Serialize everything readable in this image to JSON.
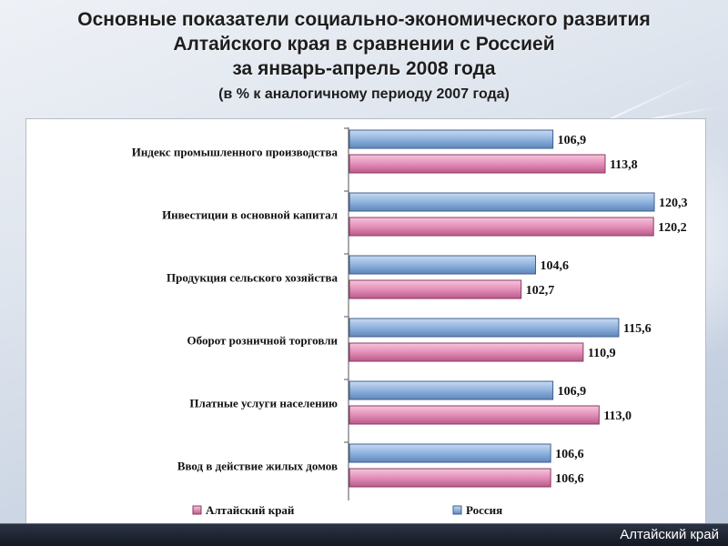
{
  "header": {
    "title_line1": "Основные показатели социально-экономического развития",
    "title_line2": "Алтайского края в сравнении с Россией",
    "title_line3": "за январь-апрель 2008 года",
    "subtitle": "(в % к аналогичному периоду 2007  года)"
  },
  "footer": {
    "label": "Алтайский край"
  },
  "chart_data": {
    "type": "bar",
    "orientation": "horizontal",
    "categories": [
      "Индекс промышленного производства",
      "Инвестиции в основной капитал",
      "Продукция сельского хозяйства",
      "Оборот розничной торговли",
      "Платные услуги населению",
      "Ввод в действие жилых домов"
    ],
    "series": [
      {
        "name": "Россия",
        "color": "#8fb3de",
        "values": [
          106.9,
          120.3,
          104.6,
          115.6,
          106.9,
          106.6
        ],
        "labels": [
          "106,9",
          "120,3",
          "104,6",
          "115,6",
          "106,9",
          "106,6"
        ]
      },
      {
        "name": "Алтайский край",
        "color": "#e38fb8",
        "values": [
          113.8,
          120.2,
          102.7,
          110.9,
          113.0,
          106.6
        ],
        "labels": [
          "113,8",
          "120,2",
          "102,7",
          "110,9",
          "113,0",
          "106,6"
        ]
      }
    ],
    "legend": [
      "Алтайский край",
      "Россия"
    ],
    "legend_position": "bottom",
    "value_axis": {
      "min": 80,
      "max": 120.3,
      "visible": false
    },
    "grid": false,
    "title": "",
    "xlabel": "",
    "ylabel": ""
  }
}
